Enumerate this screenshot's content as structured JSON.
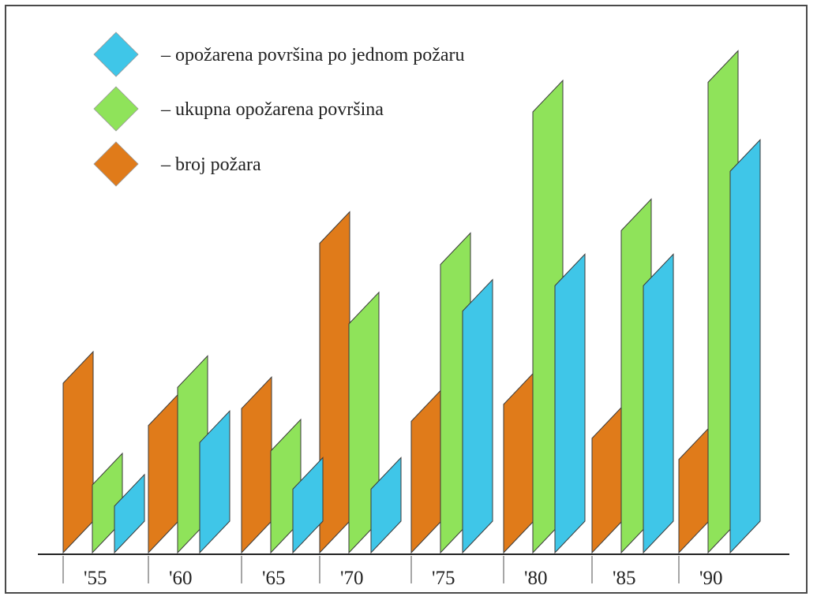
{
  "chart_data": {
    "type": "bar",
    "categories": [
      "'55",
      "'60",
      "'65",
      "'70",
      "'75",
      "'80",
      "'85",
      "'90"
    ],
    "series": [
      {
        "name": "– broj požara",
        "color": "#e07b1a",
        "values": [
          40,
          30,
          34,
          73,
          31,
          35,
          27,
          22
        ]
      },
      {
        "name": "– ukupna opožarena površina",
        "color": "#8fe35a",
        "values": [
          16,
          39,
          24,
          54,
          68,
          104,
          76,
          111
        ]
      },
      {
        "name": "– opožarena površina po jednom požaru",
        "color": "#3fc6e8",
        "values": [
          11,
          26,
          15,
          15,
          57,
          63,
          63,
          90
        ]
      }
    ],
    "title": "",
    "xlabel": "",
    "ylabel": "",
    "ylim": [
      0,
      120
    ],
    "grid": false,
    "legend_position": "top-left",
    "bar_style": "skewed parallelogram"
  }
}
